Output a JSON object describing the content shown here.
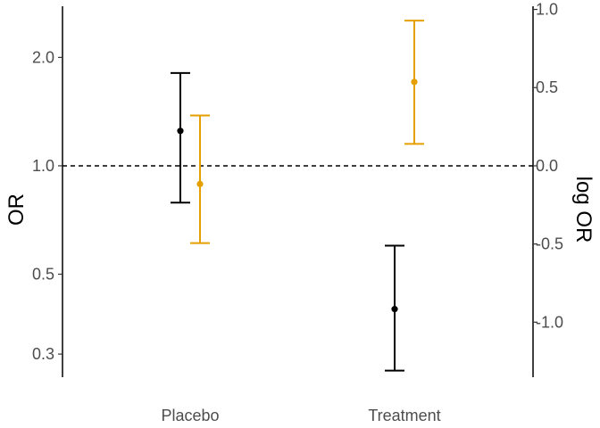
{
  "chart_data": {
    "type": "scatter",
    "subtype": "point-with-errorbars",
    "title": "",
    "xlabel": "",
    "ylabel": "OR",
    "ylabel_right": "log OR",
    "categories": [
      "Placebo",
      "Treatment"
    ],
    "y_scale": "log",
    "ylim": [
      0.2588,
      2.774
    ],
    "y_ticks": [
      0.3,
      0.5,
      1.0,
      2.0
    ],
    "y_tick_labels": [
      "0.3",
      "0.5",
      "1.0",
      "2.0"
    ],
    "y2_ticks": [
      -1.0,
      -0.5,
      0.0,
      0.5,
      1.0
    ],
    "y2_tick_labels": [
      "-1.0",
      "-0.5",
      "0.0",
      "0.5",
      "1.0"
    ],
    "reference_line": {
      "y": 1.0,
      "style": "dashed"
    },
    "grid": false,
    "legend": "none",
    "series": [
      {
        "color": "#000000",
        "points": [
          {
            "category": "Placebo",
            "y": 1.25,
            "lower": 0.79,
            "upper": 1.81
          },
          {
            "category": "Treatment",
            "y": 0.4,
            "lower": 0.27,
            "upper": 0.6
          }
        ]
      },
      {
        "color": "#E69F00",
        "points": [
          {
            "category": "Placebo",
            "y": 0.89,
            "lower": 0.61,
            "upper": 1.38
          },
          {
            "category": "Treatment",
            "y": 1.71,
            "lower": 1.15,
            "upper": 2.53
          }
        ]
      }
    ]
  }
}
